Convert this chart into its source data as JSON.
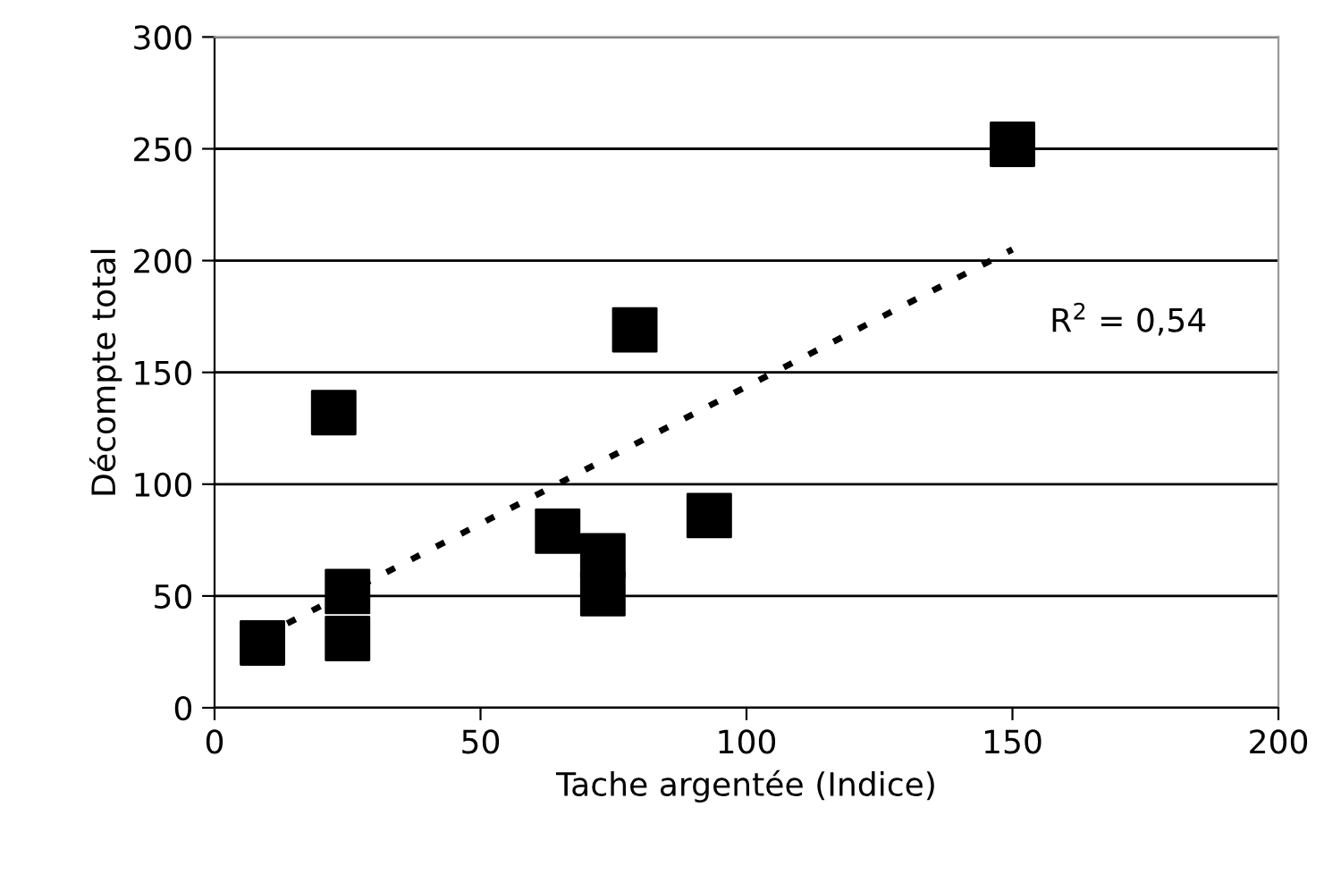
{
  "chart_data": {
    "type": "scatter",
    "xlabel": "Tache argentée (Indice)",
    "ylabel": "Décompte total",
    "xlim": [
      0,
      200
    ],
    "xticks": [
      0,
      50,
      100,
      150,
      200
    ],
    "ylim": [
      0,
      300
    ],
    "yticks": [
      0,
      50,
      100,
      150,
      200,
      250,
      300
    ],
    "grid": "y",
    "marker": "square",
    "legend": false,
    "series": [
      {
        "color": "#000000",
        "x": [
          9,
          22.4,
          25,
          25,
          64.5,
          73,
          73,
          79,
          93,
          150
        ],
        "values": [
          29,
          132,
          52,
          31,
          79,
          68,
          51,
          169,
          86,
          252
        ]
      },
      {
        "type": "line",
        "color": "#000000",
        "line_style": "dotted",
        "marker": "none",
        "x": [
          9,
          150
        ],
        "values": [
          32,
          205
        ]
      }
    ],
    "annotations": [
      "R$^{2}$ = 0,54"
    ]
  }
}
